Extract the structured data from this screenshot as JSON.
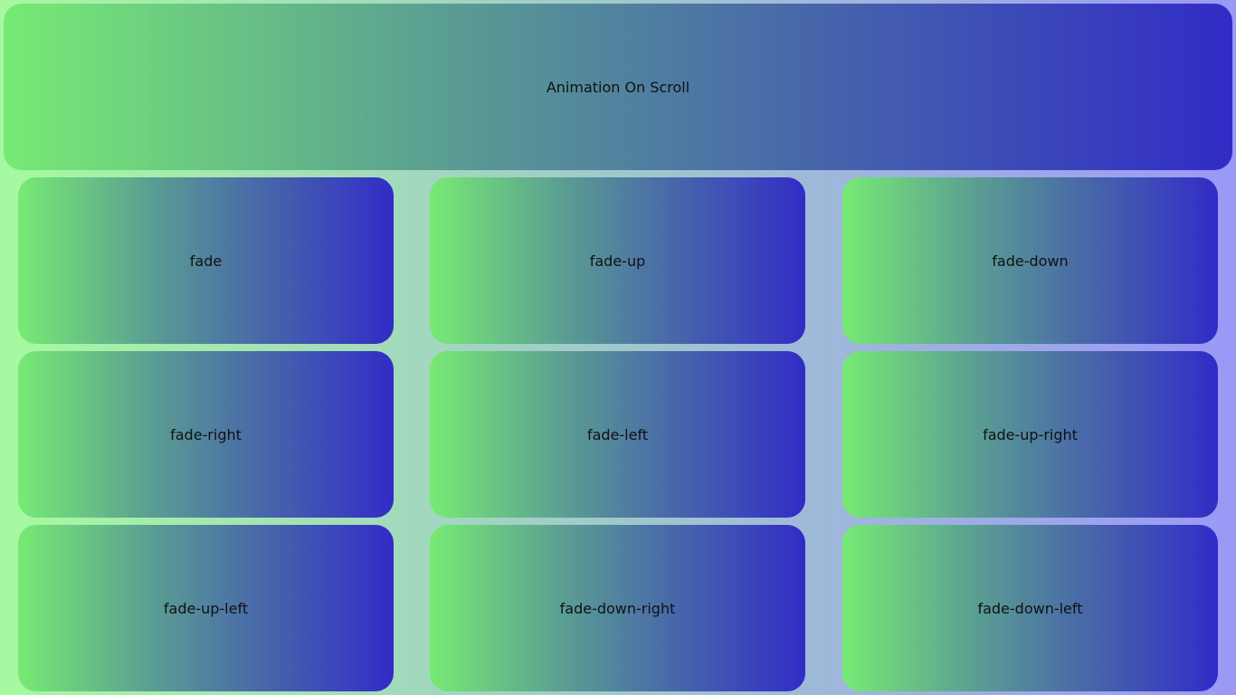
{
  "header": {
    "title": "Animation On Scroll"
  },
  "cards": [
    "fade",
    "fade-up",
    "fade-down",
    "fade-right",
    "fade-left",
    "fade-up-right",
    "fade-up-left",
    "fade-down-right",
    "fade-down-left"
  ],
  "colors": {
    "gradient_start": "#77ea74",
    "gradient_end": "#312cc6",
    "page_start": "#a6f9a0",
    "page_end": "#9b98f7"
  }
}
